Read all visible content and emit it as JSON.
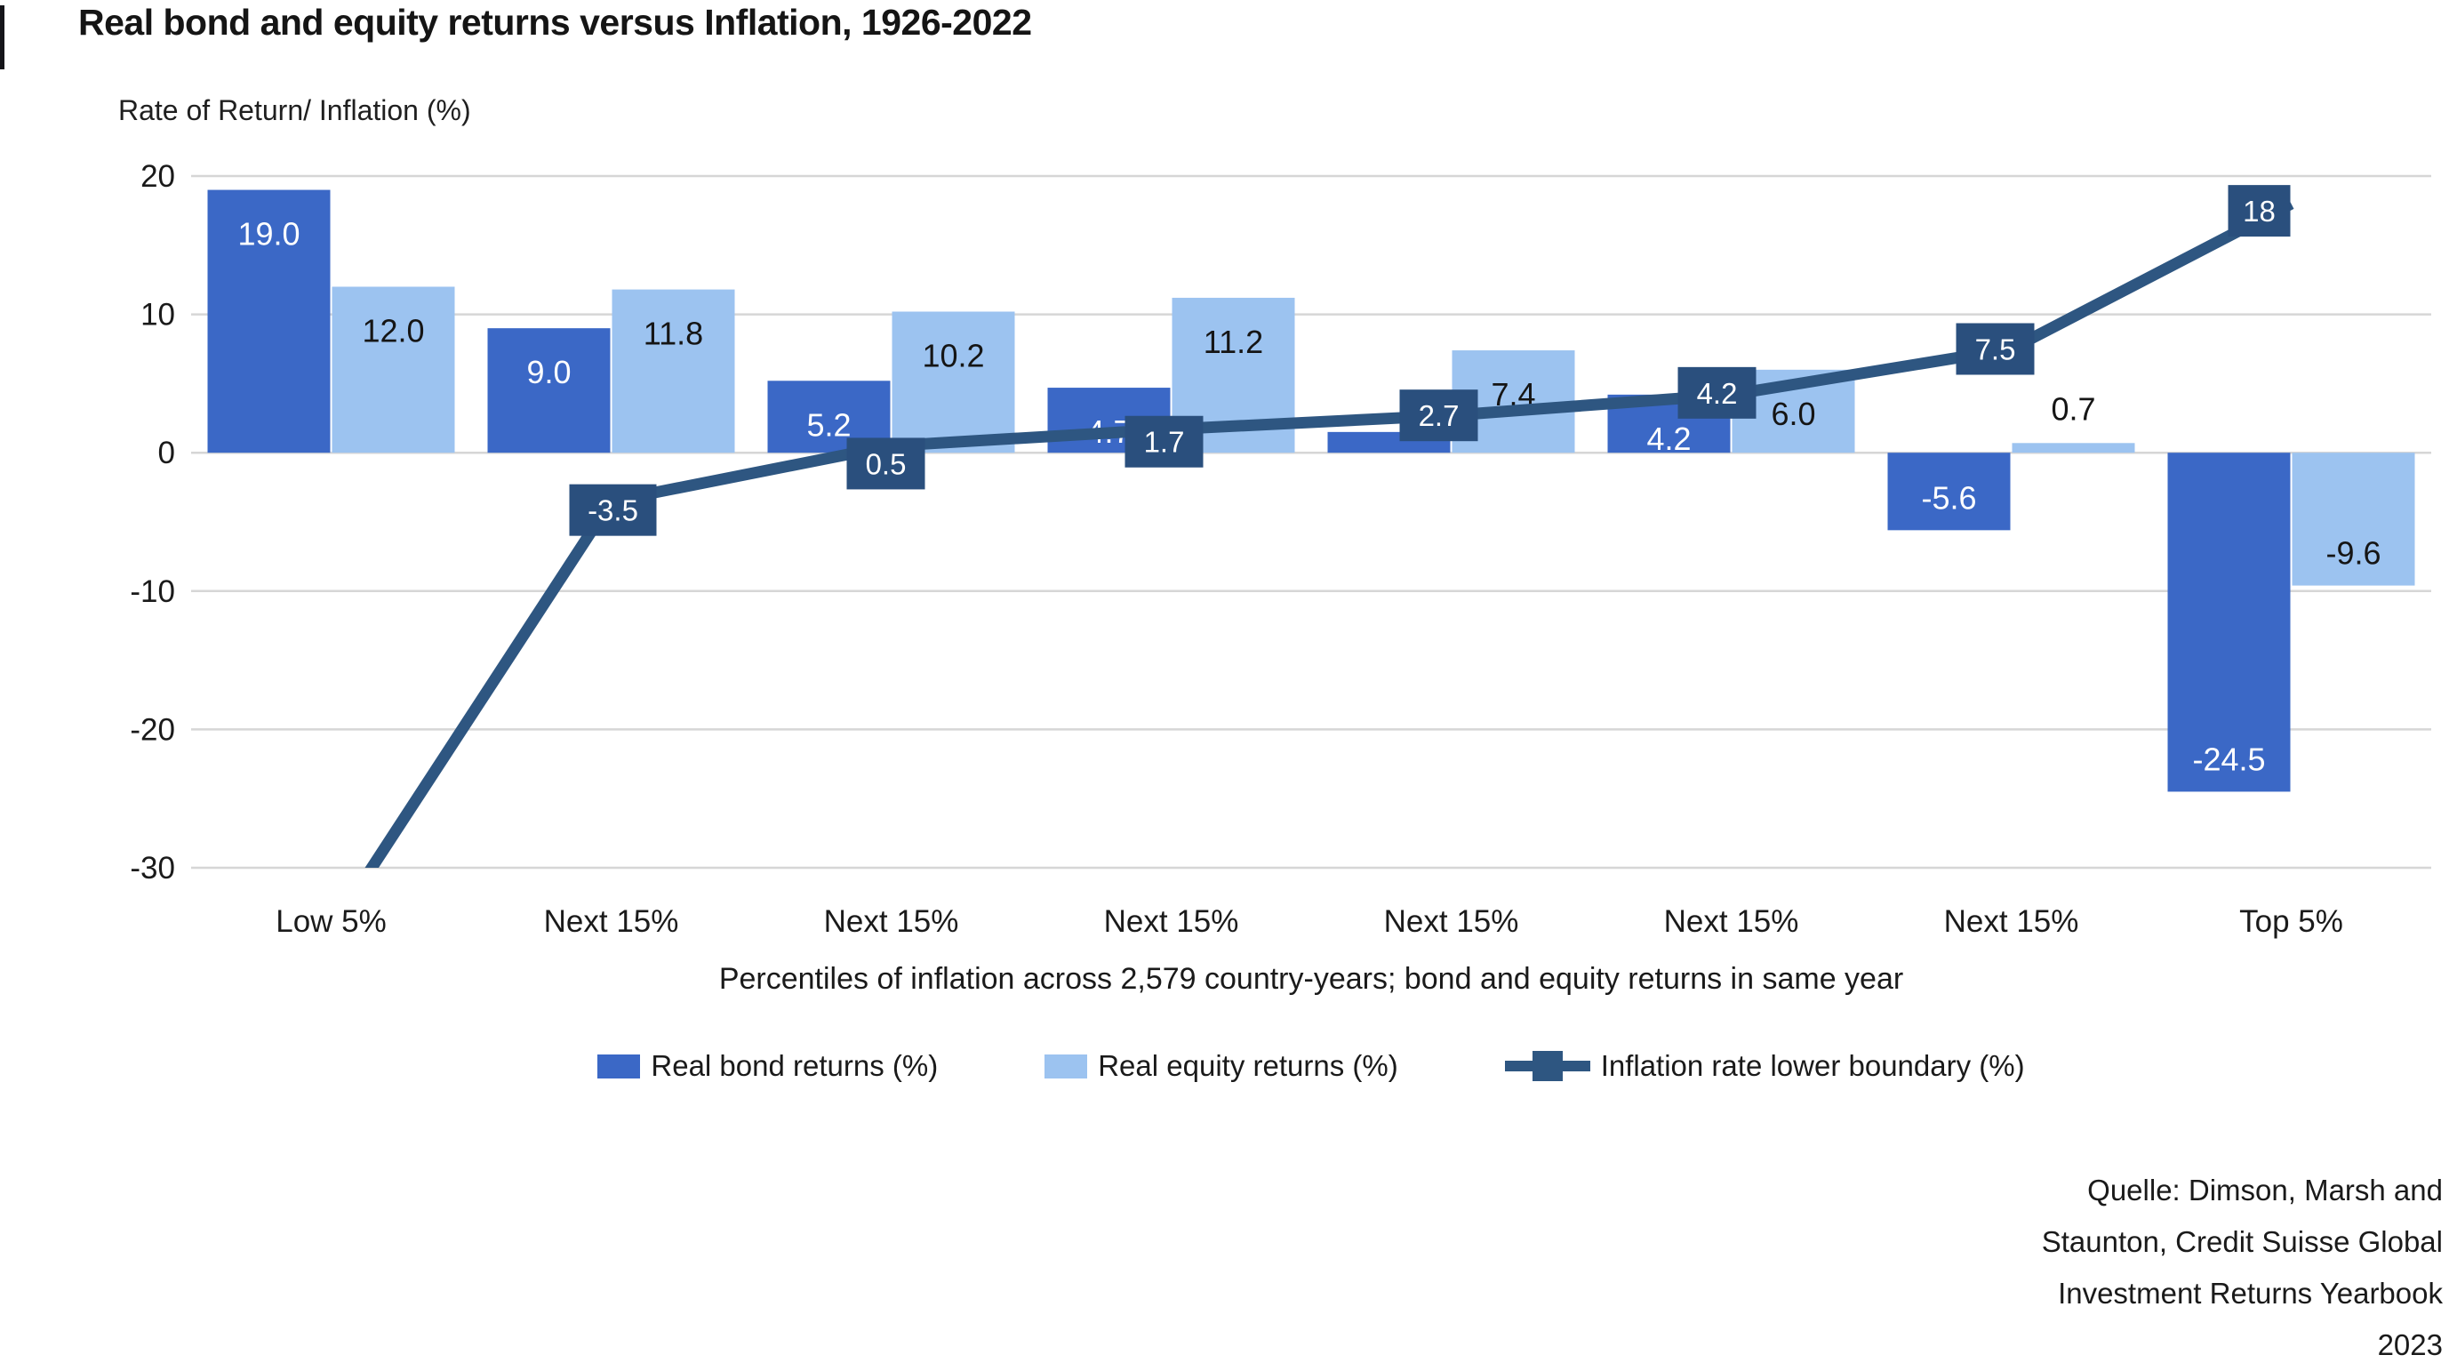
{
  "title": "Real bond and equity returns versus Inflation, 1926-2022",
  "y_axis_title": "Rate of Return/ Inflation (%)",
  "x_axis_caption": "Percentiles of inflation across 2,579 country-years; bond and equity returns in same year",
  "source": {
    "lines": [
      "Quelle: Dimson, Marsh and",
      "Staunton, Credit Suisse Global",
      "Investment Returns Yearbook",
      "2023"
    ]
  },
  "colors": {
    "bond": "#3B68C6",
    "equity": "#9CC3F0",
    "line": "#2E5681",
    "label_box": "#2A4F7D",
    "gridline": "#D6D6D6",
    "text": "#1A1A1A",
    "bar_label_light": "#FFFFFF",
    "bar_label_dark": "#151515"
  },
  "legend": [
    {
      "label": "Real bond returns (%)",
      "type": "swatch",
      "color_key": "bond"
    },
    {
      "label": "Real equity returns (%)",
      "type": "swatch",
      "color_key": "equity"
    },
    {
      "label": "Inflation rate lower boundary (%)",
      "type": "line-marker",
      "color_key": "line"
    }
  ],
  "chart_data": {
    "type": "bar",
    "categories": [
      "Low 5%",
      "Next 15%",
      "Next 15%",
      "Next 15%",
      "Next 15%",
      "Next 15%",
      "Next 15%",
      "Top 5%"
    ],
    "series": [
      {
        "name": "Real bond returns (%)",
        "type": "bar",
        "values": [
          19.0,
          9.0,
          5.2,
          4.7,
          1.5,
          4.2,
          -5.6,
          -24.5
        ],
        "labels": [
          "19.0",
          "9.0",
          "5.2",
          "4.7",
          null,
          "4.2",
          "-5.6",
          "-24.5"
        ]
      },
      {
        "name": "Real equity returns (%)",
        "type": "bar",
        "values": [
          12.0,
          11.8,
          10.2,
          11.2,
          7.4,
          6.0,
          0.7,
          -9.6
        ],
        "labels": [
          "12.0",
          "11.8",
          "10.2",
          "11.2",
          "7.4",
          "6.0",
          "0.7",
          "-9.6"
        ]
      },
      {
        "name": "Inflation rate lower boundary (%)",
        "type": "line",
        "values": [
          -34.5,
          -3.5,
          0.5,
          1.7,
          2.7,
          4.2,
          7.5,
          18
        ],
        "labels": [
          null,
          "-3.5",
          "0.5",
          "1.7",
          "2.7",
          "4.2",
          "7.5",
          "18"
        ],
        "note": "First point (Low 5%) is unlabeled and the line is clipped at the chart bottom (-30); -34.5 is estimated from the visible slope."
      }
    ],
    "yticks": [
      20,
      10,
      0,
      -10,
      -20,
      -30
    ],
    "ylim": [
      -30,
      20
    ],
    "grid": true,
    "legend_position": "bottom",
    "title": "Real bond and equity returns versus Inflation, 1926-2022",
    "xlabel": "Percentiles of inflation across 2,579 country-years; bond and equity returns in same year",
    "ylabel": "Rate of Return/ Inflation (%)"
  }
}
